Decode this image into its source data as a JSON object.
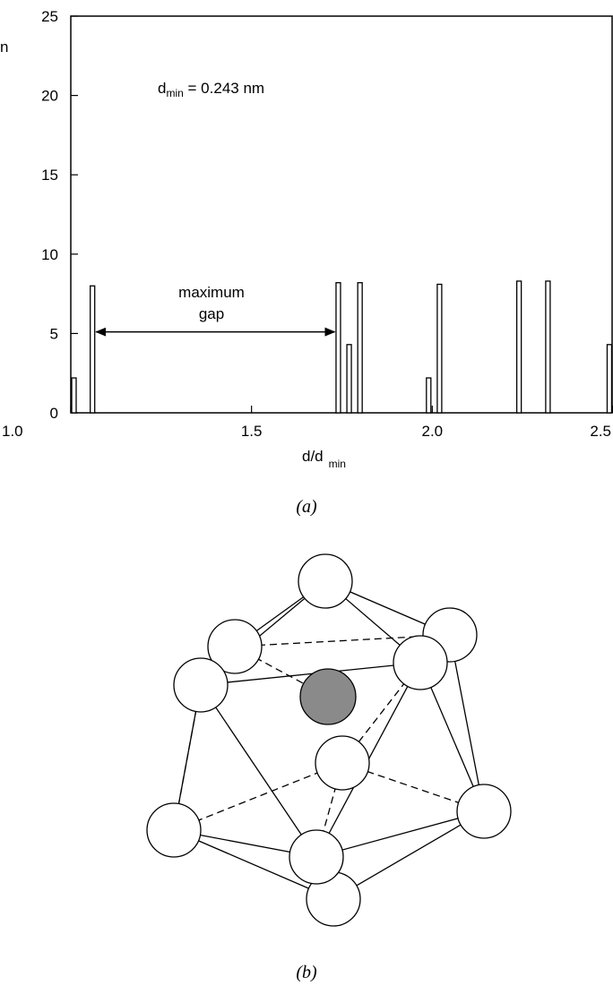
{
  "chart_data": {
    "type": "bar",
    "ylabel": "n",
    "xlabel_main": "d/d",
    "xlabel_sub": "min",
    "annotation_main": "d",
    "annotation_sub": "min",
    "annotation_rest": " = 0.243 nm",
    "gap_label_line1": "maximum",
    "gap_label_line2": "gap",
    "xlim": [
      1.0,
      2.5
    ],
    "ylim": [
      0,
      25
    ],
    "x_ticks": [
      {
        "value": 1.0,
        "label": "1.0"
      },
      {
        "value": 1.5,
        "label": "1.5"
      },
      {
        "value": 2.0,
        "label": "2.0"
      },
      {
        "value": 2.5,
        "label": "2.5"
      }
    ],
    "y_ticks": [
      {
        "value": 0,
        "label": "0"
      },
      {
        "value": 5,
        "label": "5"
      },
      {
        "value": 10,
        "label": "10"
      },
      {
        "value": 15,
        "label": "15"
      },
      {
        "value": 20,
        "label": "20"
      },
      {
        "value": 25,
        "label": "25"
      }
    ],
    "bars": [
      {
        "x": 1.0,
        "value": 2.2
      },
      {
        "x": 1.06,
        "value": 8.0
      },
      {
        "x": 1.74,
        "value": 8.2
      },
      {
        "x": 1.77,
        "value": 4.3
      },
      {
        "x": 1.8,
        "value": 8.2
      },
      {
        "x": 1.99,
        "value": 2.2
      },
      {
        "x": 2.02,
        "value": 8.1
      },
      {
        "x": 2.24,
        "value": 8.3
      },
      {
        "x": 2.32,
        "value": 8.3
      },
      {
        "x": 2.49,
        "value": 4.3
      }
    ],
    "gap_arrow": {
      "from": 1.06,
      "to": 1.74,
      "y": 5.1
    }
  },
  "captions": {
    "a": "(a)",
    "b": "(b)"
  }
}
